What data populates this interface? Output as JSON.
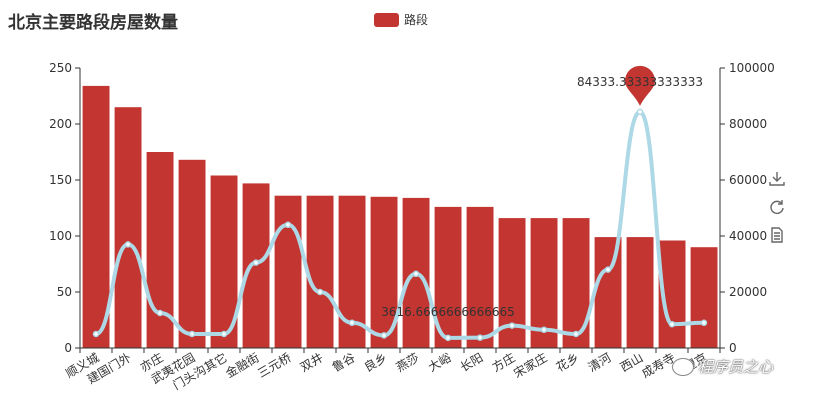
{
  "chart_data": {
    "type": "bar",
    "title": "北京主要路段房屋数量",
    "legend": {
      "entries": [
        "路段"
      ],
      "position": "top-center"
    },
    "categories": [
      "顺义城",
      "建国门外",
      "亦庄",
      "武夷花园",
      "门头沟其它",
      "金融街",
      "三元桥",
      "双井",
      "鲁谷",
      "良乡",
      "燕莎",
      "大峪",
      "长阳",
      "方庄",
      "宋家庄",
      "花乡",
      "清河",
      "西山",
      "成寿寺",
      "望京"
    ],
    "series": [
      {
        "name": "路段",
        "type": "bar",
        "axis": "left",
        "color": "#c23531",
        "values": [
          234,
          215,
          175,
          168,
          154,
          147,
          136,
          136,
          136,
          135,
          134,
          126,
          126,
          116,
          116,
          116,
          99,
          99,
          96,
          90
        ]
      },
      {
        "type": "line",
        "axis": "right",
        "color": "#add8e6",
        "values": [
          5000,
          37000,
          12500,
          5000,
          5000,
          30500,
          44000,
          20000,
          9000,
          4500,
          26500,
          3616.6666666666665,
          3700,
          8000,
          6500,
          5000,
          28000,
          84333.33333333333,
          8500,
          9000
        ]
      }
    ],
    "y_left": {
      "min": 0,
      "max": 250,
      "ticks": [
        0,
        50,
        100,
        150,
        200,
        250
      ]
    },
    "y_right": {
      "min": 0,
      "max": 100000,
      "ticks": [
        0,
        20000,
        40000,
        60000,
        80000,
        100000
      ]
    },
    "annotations": [
      {
        "type": "max-pin",
        "series": 1,
        "index": 17,
        "label": "84333.33333333333"
      },
      {
        "type": "min-label",
        "series": 1,
        "index": 11,
        "label": "3616.6666666666665"
      }
    ],
    "grid": false
  },
  "toolbox": {
    "icons": [
      "download-icon",
      "refresh-icon",
      "data-view-icon"
    ]
  },
  "watermark": {
    "text": "程序员之心"
  },
  "colors": {
    "bar": "#c23531",
    "line": "#add8e6",
    "pin": "#c23531",
    "axis": "#333333"
  }
}
